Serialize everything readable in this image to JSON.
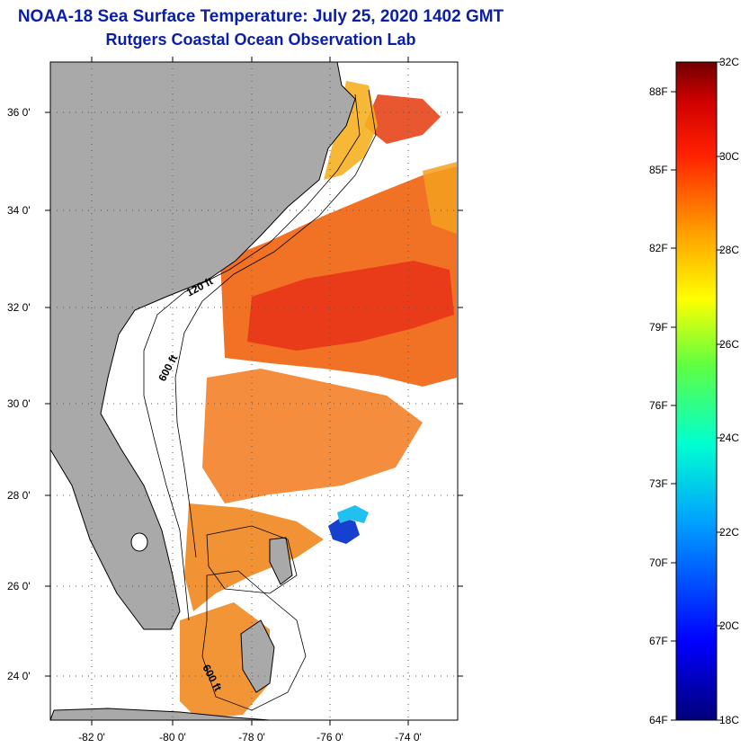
{
  "title": "NOAA-18 Sea Surface Temperature:  July 25, 2020 1402 GMT",
  "subtitle": "Rutgers Coastal Ocean Observation Lab",
  "lat_ticks": [
    "36 0'",
    "34 0'",
    "32 0'",
    "30 0'",
    "28 0'",
    "26 0'",
    "24 0'"
  ],
  "lon_ticks": [
    "-82 0'",
    "-80 0'",
    "-78 0'",
    "-76 0'",
    "-74 0'"
  ],
  "contours": {
    "c120": "120 ft",
    "c600": "600 ft",
    "c600b": "600 ft"
  },
  "colorbar": {
    "celsius": [
      "32C",
      "30C",
      "28C",
      "26C",
      "24C",
      "22C",
      "20C",
      "18C"
    ],
    "fahrenheit": [
      "88F",
      "85F",
      "82F",
      "79F",
      "76F",
      "73F",
      "70F",
      "67F",
      "64F"
    ]
  },
  "colors": {
    "land": "#a9a9a9",
    "ocean": "#ffffff",
    "title": "#0b1ea8"
  }
}
